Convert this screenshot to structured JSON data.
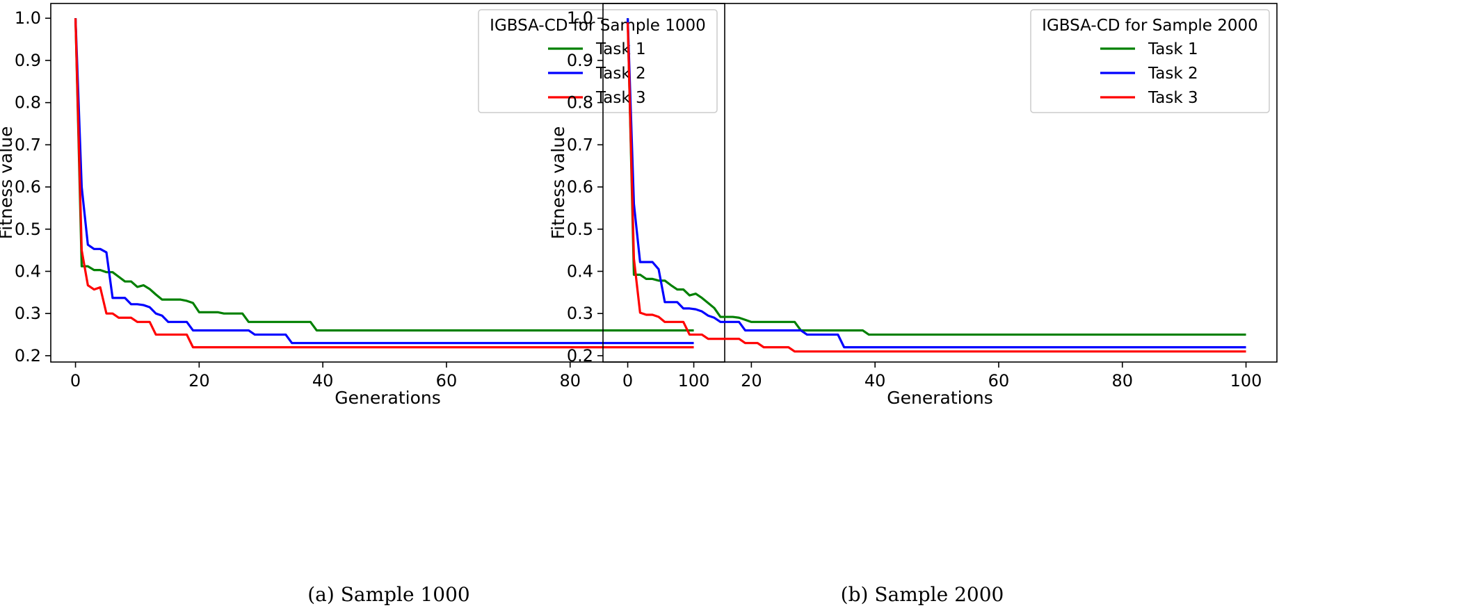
{
  "chart_data": [
    {
      "type": "line",
      "caption": "(a) Sample 1000",
      "xlabel": "Generations",
      "ylabel": "Fitness value",
      "xlim": [
        -4,
        105
      ],
      "ylim": [
        0.185,
        1.035
      ],
      "xticks": [
        0,
        20,
        40,
        60,
        80,
        100
      ],
      "yticks": [
        0.2,
        0.3,
        0.4,
        0.5,
        0.6,
        0.7,
        0.8,
        0.9,
        1.0
      ],
      "xtick_labels": [
        "0",
        "20",
        "40",
        "60",
        "80",
        "100"
      ],
      "ytick_labels": [
        "0.2",
        "0.3",
        "0.4",
        "0.5",
        "0.6",
        "0.7",
        "0.8",
        "0.9",
        "1.0"
      ],
      "grid": false,
      "legend": {
        "title": "IGBSA-CD for Sample 1000",
        "placement": "top-right",
        "entries": [
          "Task 1",
          "Task 2",
          "Task 3"
        ]
      },
      "series": [
        {
          "name": "Task 1",
          "color": "#008000",
          "points": [
            [
              0,
              1.0
            ],
            [
              1,
              0.412
            ],
            [
              2,
              0.412
            ],
            [
              3,
              0.403
            ],
            [
              4,
              0.403
            ],
            [
              5,
              0.398
            ],
            [
              6,
              0.398
            ],
            [
              7,
              0.387
            ],
            [
              8,
              0.376
            ],
            [
              9,
              0.376
            ],
            [
              10,
              0.363
            ],
            [
              11,
              0.367
            ],
            [
              12,
              0.358
            ],
            [
              13,
              0.345
            ],
            [
              14,
              0.333
            ],
            [
              15,
              0.333
            ],
            [
              16,
              0.333
            ],
            [
              17,
              0.333
            ],
            [
              18,
              0.33
            ],
            [
              19,
              0.325
            ],
            [
              20,
              0.303
            ],
            [
              21,
              0.303
            ],
            [
              22,
              0.303
            ],
            [
              23,
              0.303
            ],
            [
              24,
              0.3
            ],
            [
              25,
              0.3
            ],
            [
              26,
              0.3
            ],
            [
              27,
              0.3
            ],
            [
              28,
              0.28
            ],
            [
              29,
              0.28
            ],
            [
              30,
              0.28
            ],
            [
              31,
              0.28
            ],
            [
              32,
              0.28
            ],
            [
              33,
              0.28
            ],
            [
              34,
              0.28
            ],
            [
              35,
              0.28
            ],
            [
              36,
              0.28
            ],
            [
              37,
              0.28
            ],
            [
              38,
              0.28
            ],
            [
              39,
              0.26
            ],
            [
              100,
              0.26
            ]
          ]
        },
        {
          "name": "Task 2",
          "color": "#0000ff",
          "points": [
            [
              0,
              1.0
            ],
            [
              1,
              0.6
            ],
            [
              2,
              0.463
            ],
            [
              3,
              0.453
            ],
            [
              4,
              0.453
            ],
            [
              5,
              0.445
            ],
            [
              6,
              0.337
            ],
            [
              7,
              0.337
            ],
            [
              8,
              0.337
            ],
            [
              9,
              0.322
            ],
            [
              10,
              0.322
            ],
            [
              11,
              0.32
            ],
            [
              12,
              0.315
            ],
            [
              13,
              0.3
            ],
            [
              14,
              0.295
            ],
            [
              15,
              0.28
            ],
            [
              16,
              0.28
            ],
            [
              17,
              0.28
            ],
            [
              18,
              0.28
            ],
            [
              19,
              0.26
            ],
            [
              20,
              0.26
            ],
            [
              27,
              0.26
            ],
            [
              28,
              0.26
            ],
            [
              29,
              0.25
            ],
            [
              34,
              0.25
            ],
            [
              35,
              0.23
            ],
            [
              100,
              0.23
            ]
          ]
        },
        {
          "name": "Task 3",
          "color": "#ff0000",
          "points": [
            [
              0,
              1.0
            ],
            [
              1,
              0.45
            ],
            [
              2,
              0.367
            ],
            [
              3,
              0.357
            ],
            [
              4,
              0.362
            ],
            [
              5,
              0.3
            ],
            [
              6,
              0.3
            ],
            [
              7,
              0.29
            ],
            [
              8,
              0.29
            ],
            [
              9,
              0.29
            ],
            [
              10,
              0.28
            ],
            [
              11,
              0.28
            ],
            [
              12,
              0.28
            ],
            [
              13,
              0.25
            ],
            [
              14,
              0.25
            ],
            [
              15,
              0.25
            ],
            [
              16,
              0.25
            ],
            [
              17,
              0.25
            ],
            [
              18,
              0.25
            ],
            [
              19,
              0.22
            ],
            [
              100,
              0.22
            ]
          ]
        }
      ]
    },
    {
      "type": "line",
      "caption": "(b) Sample 2000",
      "xlabel": "Generations",
      "ylabel": "Fitness value",
      "xlim": [
        -4,
        105
      ],
      "ylim": [
        0.185,
        1.035
      ],
      "xticks": [
        0,
        20,
        40,
        60,
        80,
        100
      ],
      "yticks": [
        0.2,
        0.3,
        0.4,
        0.5,
        0.6,
        0.7,
        0.8,
        0.9,
        1.0
      ],
      "xtick_labels": [
        "0",
        "20",
        "40",
        "60",
        "80",
        "100"
      ],
      "ytick_labels": [
        "0.2",
        "0.3",
        "0.4",
        "0.5",
        "0.6",
        "0.7",
        "0.8",
        "0.9",
        "1.0"
      ],
      "grid": false,
      "legend": {
        "title": "IGBSA-CD for Sample 2000",
        "placement": "top-right",
        "entries": [
          "Task 1",
          "Task 2",
          "Task 3"
        ]
      },
      "series": [
        {
          "name": "Task 1",
          "color": "#008000",
          "points": [
            [
              0,
              1.0
            ],
            [
              1,
              0.392
            ],
            [
              2,
              0.392
            ],
            [
              3,
              0.382
            ],
            [
              4,
              0.382
            ],
            [
              5,
              0.378
            ],
            [
              6,
              0.378
            ],
            [
              7,
              0.367
            ],
            [
              8,
              0.357
            ],
            [
              9,
              0.357
            ],
            [
              10,
              0.343
            ],
            [
              11,
              0.347
            ],
            [
              12,
              0.337
            ],
            [
              13,
              0.325
            ],
            [
              14,
              0.313
            ],
            [
              15,
              0.292
            ],
            [
              16,
              0.292
            ],
            [
              17,
              0.292
            ],
            [
              18,
              0.29
            ],
            [
              19,
              0.285
            ],
            [
              20,
              0.28
            ],
            [
              21,
              0.28
            ],
            [
              26,
              0.28
            ],
            [
              27,
              0.28
            ],
            [
              28,
              0.26
            ],
            [
              37,
              0.26
            ],
            [
              38,
              0.26
            ],
            [
              39,
              0.25
            ],
            [
              100,
              0.25
            ]
          ]
        },
        {
          "name": "Task 2",
          "color": "#0000ff",
          "points": [
            [
              0,
              1.0
            ],
            [
              1,
              0.56
            ],
            [
              2,
              0.422
            ],
            [
              3,
              0.422
            ],
            [
              4,
              0.422
            ],
            [
              5,
              0.405
            ],
            [
              6,
              0.327
            ],
            [
              7,
              0.327
            ],
            [
              8,
              0.327
            ],
            [
              9,
              0.312
            ],
            [
              10,
              0.312
            ],
            [
              11,
              0.31
            ],
            [
              12,
              0.305
            ],
            [
              13,
              0.295
            ],
            [
              14,
              0.29
            ],
            [
              15,
              0.28
            ],
            [
              16,
              0.28
            ],
            [
              17,
              0.28
            ],
            [
              18,
              0.28
            ],
            [
              19,
              0.26
            ],
            [
              20,
              0.26
            ],
            [
              27,
              0.26
            ],
            [
              28,
              0.26
            ],
            [
              29,
              0.25
            ],
            [
              34,
              0.25
            ],
            [
              35,
              0.22
            ],
            [
              100,
              0.22
            ]
          ]
        },
        {
          "name": "Task 3",
          "color": "#ff0000",
          "points": [
            [
              0,
              0.99
            ],
            [
              1,
              0.43
            ],
            [
              2,
              0.302
            ],
            [
              3,
              0.297
            ],
            [
              4,
              0.297
            ],
            [
              5,
              0.292
            ],
            [
              6,
              0.28
            ],
            [
              7,
              0.28
            ],
            [
              8,
              0.28
            ],
            [
              9,
              0.28
            ],
            [
              10,
              0.25
            ],
            [
              11,
              0.25
            ],
            [
              12,
              0.25
            ],
            [
              13,
              0.24
            ],
            [
              14,
              0.24
            ],
            [
              15,
              0.24
            ],
            [
              16,
              0.24
            ],
            [
              17,
              0.24
            ],
            [
              18,
              0.24
            ],
            [
              19,
              0.23
            ],
            [
              20,
              0.23
            ],
            [
              21,
              0.23
            ],
            [
              22,
              0.22
            ],
            [
              26,
              0.22
            ],
            [
              27,
              0.21
            ],
            [
              100,
              0.21
            ]
          ]
        }
      ]
    }
  ]
}
